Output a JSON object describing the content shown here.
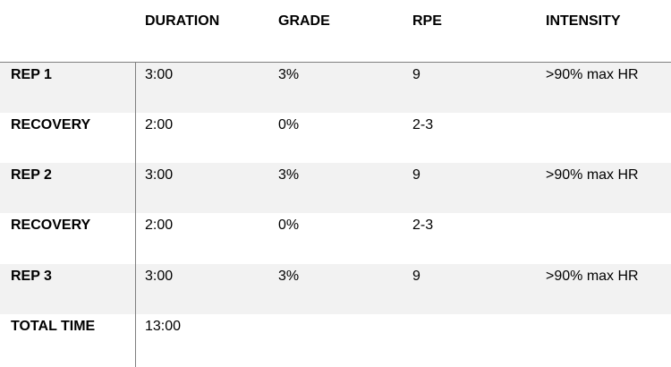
{
  "headers": [
    "",
    "DURATION",
    "GRADE",
    "RPE",
    "INTENSITY"
  ],
  "rows": [
    {
      "label": "REP 1",
      "duration": "3:00",
      "grade": "3%",
      "rpe": "9",
      "intensity": ">90% max HR"
    },
    {
      "label": "RECOVERY",
      "duration": "2:00",
      "grade": "0%",
      "rpe": "2-3",
      "intensity": ""
    },
    {
      "label": "REP 2",
      "duration": "3:00",
      "grade": "3%",
      "rpe": "9",
      "intensity": ">90% max HR"
    },
    {
      "label": "RECOVERY",
      "duration": "2:00",
      "grade": "0%",
      "rpe": "2-3",
      "intensity": ""
    },
    {
      "label": "REP 3",
      "duration": "3:00",
      "grade": "3%",
      "rpe": "9",
      "intensity": ">90% max HR"
    },
    {
      "label": "TOTAL TIME",
      "duration": "13:00",
      "grade": "",
      "rpe": "",
      "intensity": ""
    }
  ]
}
